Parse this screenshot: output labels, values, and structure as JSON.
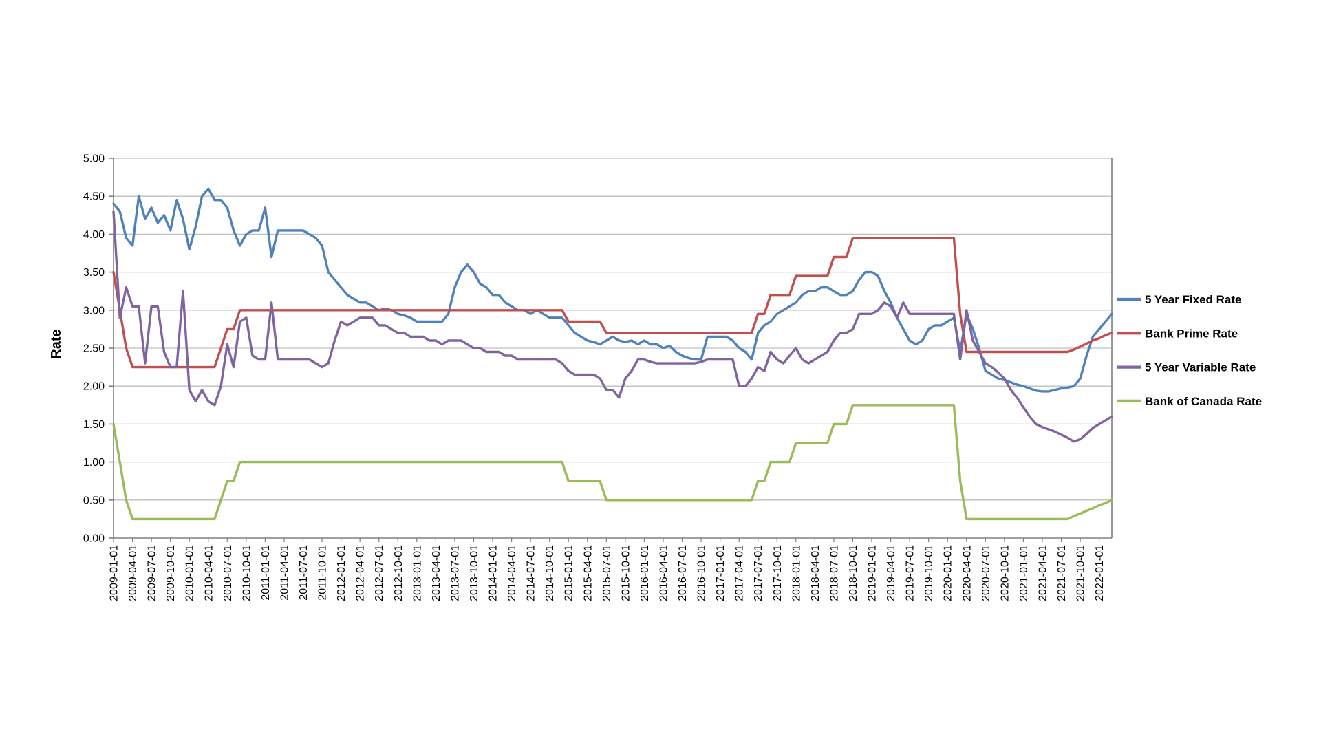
{
  "chart_data": {
    "type": "line",
    "title": "",
    "xlabel": "",
    "ylabel": "Rate",
    "ylim": [
      0,
      5
    ],
    "ytick_step": 0.5,
    "grid": "horizontal",
    "gridline_color": "#bfbfbf",
    "axis_color": "#808080",
    "background_color": "#ffffff",
    "legend_position": "right",
    "x_start": "2009-01-01",
    "x_interval": "monthly",
    "y_tick_labels": [
      "0.00",
      "0.50",
      "1.00",
      "1.50",
      "2.00",
      "2.50",
      "3.00",
      "3.50",
      "4.00",
      "4.50",
      "5.00"
    ],
    "x_tick_labels": [
      "2009-01-01",
      "2009-04-01",
      "2009-07-01",
      "2009-10-01",
      "2010-01-01",
      "2010-04-01",
      "2010-07-01",
      "2010-10-01",
      "2011-01-01",
      "2011-04-01",
      "2011-07-01",
      "2011-10-01",
      "2012-01-01",
      "2012-04-01",
      "2012-07-01",
      "2012-10-01",
      "2013-01-01",
      "2013-04-01",
      "2013-07-01",
      "2013-10-01",
      "2014-01-01",
      "2014-04-01",
      "2014-07-01",
      "2014-10-01",
      "2015-01-01",
      "2015-04-01",
      "2015-07-01",
      "2015-10-01",
      "2016-01-01",
      "2016-04-01",
      "2016-07-01",
      "2016-10-01",
      "2017-01-01",
      "2017-04-01",
      "2017-07-01",
      "2017-10-01",
      "2018-01-01",
      "2018-04-01",
      "2018-07-01",
      "2018-10-01",
      "2019-01-01",
      "2019-04-01",
      "2019-07-01",
      "2019-10-01",
      "2020-01-01",
      "2020-04-01",
      "2020-07-01",
      "2020-10-01",
      "2021-01-01",
      "2021-04-01",
      "2021-07-01",
      "2021-10-01",
      "2022-01-01"
    ],
    "series": [
      {
        "name": "5 Year Fixed Rate",
        "color": "#4F81BD",
        "values": [
          4.4,
          4.3,
          3.95,
          3.85,
          4.5,
          4.2,
          4.35,
          4.15,
          4.25,
          4.05,
          4.45,
          4.2,
          3.8,
          4.1,
          4.5,
          4.6,
          4.45,
          4.45,
          4.35,
          4.05,
          3.85,
          4.0,
          4.05,
          4.05,
          4.35,
          3.7,
          4.05,
          4.05,
          4.05,
          4.05,
          4.05,
          4.0,
          3.95,
          3.85,
          3.5,
          3.4,
          3.3,
          3.2,
          3.15,
          3.1,
          3.1,
          3.05,
          3.0,
          3.02,
          3.0,
          2.95,
          2.93,
          2.9,
          2.85,
          2.85,
          2.85,
          2.85,
          2.85,
          2.95,
          3.3,
          3.5,
          3.6,
          3.5,
          3.35,
          3.3,
          3.2,
          3.2,
          3.1,
          3.05,
          3.0,
          3.0,
          2.95,
          3.0,
          2.95,
          2.9,
          2.9,
          2.9,
          2.8,
          2.7,
          2.65,
          2.6,
          2.58,
          2.55,
          2.6,
          2.65,
          2.6,
          2.58,
          2.6,
          2.55,
          2.6,
          2.55,
          2.55,
          2.5,
          2.53,
          2.45,
          2.4,
          2.37,
          2.35,
          2.35,
          2.65,
          2.65,
          2.65,
          2.65,
          2.6,
          2.5,
          2.45,
          2.35,
          2.7,
          2.8,
          2.85,
          2.95,
          3.0,
          3.05,
          3.1,
          3.2,
          3.25,
          3.25,
          3.3,
          3.3,
          3.25,
          3.2,
          3.2,
          3.25,
          3.4,
          3.5,
          3.5,
          3.45,
          3.25,
          3.1,
          2.9,
          2.75,
          2.6,
          2.55,
          2.6,
          2.75,
          2.8,
          2.8,
          2.85,
          2.9,
          2.45,
          2.95,
          2.75,
          2.5,
          2.2,
          2.15,
          2.1,
          2.08,
          2.05,
          2.02,
          2.0,
          1.97,
          1.94,
          1.93,
          1.93,
          1.95,
          1.97,
          1.98,
          2.0,
          2.1,
          2.4,
          2.65,
          2.75,
          2.85,
          2.95
        ]
      },
      {
        "name": "Bank Prime Rate",
        "color": "#C0504D",
        "values": [
          3.5,
          3.0,
          2.5,
          2.25,
          2.25,
          2.25,
          2.25,
          2.25,
          2.25,
          2.25,
          2.25,
          2.25,
          2.25,
          2.25,
          2.25,
          2.25,
          2.25,
          2.5,
          2.75,
          2.75,
          3.0,
          3.0,
          3.0,
          3.0,
          3.0,
          3.0,
          3.0,
          3.0,
          3.0,
          3.0,
          3.0,
          3.0,
          3.0,
          3.0,
          3.0,
          3.0,
          3.0,
          3.0,
          3.0,
          3.0,
          3.0,
          3.0,
          3.0,
          3.0,
          3.0,
          3.0,
          3.0,
          3.0,
          3.0,
          3.0,
          3.0,
          3.0,
          3.0,
          3.0,
          3.0,
          3.0,
          3.0,
          3.0,
          3.0,
          3.0,
          3.0,
          3.0,
          3.0,
          3.0,
          3.0,
          3.0,
          3.0,
          3.0,
          3.0,
          3.0,
          3.0,
          3.0,
          2.85,
          2.85,
          2.85,
          2.85,
          2.85,
          2.85,
          2.7,
          2.7,
          2.7,
          2.7,
          2.7,
          2.7,
          2.7,
          2.7,
          2.7,
          2.7,
          2.7,
          2.7,
          2.7,
          2.7,
          2.7,
          2.7,
          2.7,
          2.7,
          2.7,
          2.7,
          2.7,
          2.7,
          2.7,
          2.7,
          2.95,
          2.95,
          3.2,
          3.2,
          3.2,
          3.2,
          3.45,
          3.45,
          3.45,
          3.45,
          3.45,
          3.45,
          3.7,
          3.7,
          3.7,
          3.95,
          3.95,
          3.95,
          3.95,
          3.95,
          3.95,
          3.95,
          3.95,
          3.95,
          3.95,
          3.95,
          3.95,
          3.95,
          3.95,
          3.95,
          3.95,
          3.95,
          2.95,
          2.45,
          2.45,
          2.45,
          2.45,
          2.45,
          2.45,
          2.45,
          2.45,
          2.45,
          2.45,
          2.45,
          2.45,
          2.45,
          2.45,
          2.45,
          2.45,
          2.45,
          2.48,
          2.52,
          2.56,
          2.6,
          2.63,
          2.67,
          2.7
        ]
      },
      {
        "name": "5 Year Variable Rate",
        "color": "#8064A2",
        "values": [
          4.3,
          2.9,
          3.3,
          3.05,
          3.05,
          2.3,
          3.05,
          3.05,
          2.45,
          2.25,
          2.25,
          3.25,
          1.95,
          1.8,
          1.95,
          1.8,
          1.75,
          2.0,
          2.55,
          2.25,
          2.85,
          2.9,
          2.4,
          2.35,
          2.35,
          3.1,
          2.35,
          2.35,
          2.35,
          2.35,
          2.35,
          2.35,
          2.3,
          2.25,
          2.3,
          2.6,
          2.85,
          2.8,
          2.85,
          2.9,
          2.9,
          2.9,
          2.8,
          2.8,
          2.75,
          2.7,
          2.7,
          2.65,
          2.65,
          2.65,
          2.6,
          2.6,
          2.55,
          2.6,
          2.6,
          2.6,
          2.55,
          2.5,
          2.5,
          2.45,
          2.45,
          2.45,
          2.4,
          2.4,
          2.35,
          2.35,
          2.35,
          2.35,
          2.35,
          2.35,
          2.35,
          2.3,
          2.2,
          2.15,
          2.15,
          2.15,
          2.15,
          2.1,
          1.95,
          1.95,
          1.85,
          2.1,
          2.2,
          2.35,
          2.35,
          2.32,
          2.3,
          2.3,
          2.3,
          2.3,
          2.3,
          2.3,
          2.3,
          2.32,
          2.35,
          2.35,
          2.35,
          2.35,
          2.35,
          2.0,
          2.0,
          2.1,
          2.25,
          2.2,
          2.45,
          2.35,
          2.3,
          2.4,
          2.5,
          2.35,
          2.3,
          2.35,
          2.4,
          2.45,
          2.6,
          2.7,
          2.7,
          2.75,
          2.95,
          2.95,
          2.95,
          3.0,
          3.1,
          3.05,
          2.9,
          3.1,
          2.95,
          2.95,
          2.95,
          2.95,
          2.95,
          2.95,
          2.95,
          2.95,
          2.35,
          3.0,
          2.6,
          2.45,
          2.3,
          2.25,
          2.18,
          2.1,
          1.95,
          1.85,
          1.72,
          1.6,
          1.5,
          1.46,
          1.43,
          1.4,
          1.36,
          1.32,
          1.27,
          1.3,
          1.37,
          1.45,
          1.5,
          1.55,
          1.6
        ]
      },
      {
        "name": "Bank of Canada Rate",
        "color": "#9BBB59",
        "values": [
          1.5,
          1.0,
          0.5,
          0.25,
          0.25,
          0.25,
          0.25,
          0.25,
          0.25,
          0.25,
          0.25,
          0.25,
          0.25,
          0.25,
          0.25,
          0.25,
          0.25,
          0.5,
          0.75,
          0.75,
          1.0,
          1.0,
          1.0,
          1.0,
          1.0,
          1.0,
          1.0,
          1.0,
          1.0,
          1.0,
          1.0,
          1.0,
          1.0,
          1.0,
          1.0,
          1.0,
          1.0,
          1.0,
          1.0,
          1.0,
          1.0,
          1.0,
          1.0,
          1.0,
          1.0,
          1.0,
          1.0,
          1.0,
          1.0,
          1.0,
          1.0,
          1.0,
          1.0,
          1.0,
          1.0,
          1.0,
          1.0,
          1.0,
          1.0,
          1.0,
          1.0,
          1.0,
          1.0,
          1.0,
          1.0,
          1.0,
          1.0,
          1.0,
          1.0,
          1.0,
          1.0,
          1.0,
          0.75,
          0.75,
          0.75,
          0.75,
          0.75,
          0.75,
          0.5,
          0.5,
          0.5,
          0.5,
          0.5,
          0.5,
          0.5,
          0.5,
          0.5,
          0.5,
          0.5,
          0.5,
          0.5,
          0.5,
          0.5,
          0.5,
          0.5,
          0.5,
          0.5,
          0.5,
          0.5,
          0.5,
          0.5,
          0.5,
          0.75,
          0.75,
          1.0,
          1.0,
          1.0,
          1.0,
          1.25,
          1.25,
          1.25,
          1.25,
          1.25,
          1.25,
          1.5,
          1.5,
          1.5,
          1.75,
          1.75,
          1.75,
          1.75,
          1.75,
          1.75,
          1.75,
          1.75,
          1.75,
          1.75,
          1.75,
          1.75,
          1.75,
          1.75,
          1.75,
          1.75,
          1.75,
          0.75,
          0.25,
          0.25,
          0.25,
          0.25,
          0.25,
          0.25,
          0.25,
          0.25,
          0.25,
          0.25,
          0.25,
          0.25,
          0.25,
          0.25,
          0.25,
          0.25,
          0.25,
          0.29,
          0.32,
          0.36,
          0.39,
          0.43,
          0.46,
          0.5
        ]
      }
    ]
  }
}
